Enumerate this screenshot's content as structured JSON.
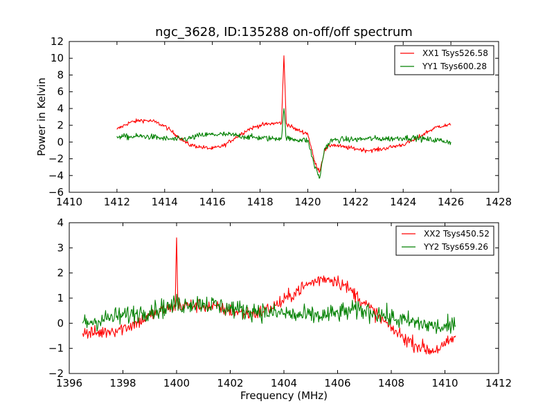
{
  "chart_data": [
    {
      "type": "line",
      "title": "ngc_3628, ID:135288 on-off/off spectrum",
      "xlabel": "",
      "ylabel": "Power in Kelvin",
      "xlim": [
        1410,
        1428
      ],
      "ylim": [
        -6,
        12
      ],
      "xticks": [
        1410,
        1412,
        1414,
        1416,
        1418,
        1420,
        1422,
        1424,
        1426,
        1428
      ],
      "yticks": [
        -6,
        -4,
        -2,
        0,
        2,
        4,
        6,
        8,
        10,
        12
      ],
      "grid": false,
      "legend_position": "top-right",
      "series": [
        {
          "name": "XX1 Tsys526.58",
          "color": "#ff0000",
          "x": [
            1412.0,
            1412.5,
            1413.0,
            1413.5,
            1414.0,
            1414.5,
            1415.0,
            1415.5,
            1416.0,
            1416.5,
            1417.0,
            1417.5,
            1418.0,
            1418.5,
            1418.9,
            1419.0,
            1419.1,
            1419.5,
            1420.0,
            1420.3,
            1420.5,
            1420.7,
            1421.0,
            1421.5,
            1422.0,
            1422.5,
            1423.0,
            1423.5,
            1424.0,
            1424.5,
            1425.0,
            1425.5,
            1426.0
          ],
          "y": [
            1.5,
            2.3,
            2.6,
            2.5,
            1.9,
            0.8,
            -0.3,
            -0.6,
            -0.8,
            -0.4,
            0.6,
            1.5,
            2.0,
            2.2,
            2.3,
            10.3,
            2.2,
            1.5,
            1.0,
            -2.5,
            -3.5,
            -1.0,
            -0.3,
            -0.6,
            -0.8,
            -1.0,
            -0.9,
            -0.6,
            -0.3,
            0.3,
            1.2,
            1.9,
            2.0
          ]
        },
        {
          "name": "YY1 Tsys600.28",
          "color": "#008000",
          "x": [
            1412.0,
            1412.5,
            1413.0,
            1413.5,
            1414.0,
            1414.5,
            1415.0,
            1415.5,
            1416.0,
            1416.5,
            1417.0,
            1417.5,
            1418.0,
            1418.5,
            1418.9,
            1419.0,
            1419.1,
            1419.5,
            1420.0,
            1420.3,
            1420.5,
            1420.7,
            1421.0,
            1421.5,
            1422.0,
            1422.5,
            1423.0,
            1423.5,
            1424.0,
            1424.5,
            1425.0,
            1425.5,
            1426.0
          ],
          "y": [
            0.7,
            0.6,
            0.7,
            0.6,
            0.4,
            0.3,
            0.4,
            0.8,
            0.9,
            0.9,
            0.8,
            0.6,
            0.5,
            0.4,
            0.5,
            4.0,
            0.4,
            0.3,
            0.2,
            -3.0,
            -4.3,
            -0.8,
            0.2,
            0.3,
            0.3,
            0.4,
            0.4,
            0.4,
            0.5,
            0.5,
            0.3,
            0.2,
            0.0
          ]
        }
      ]
    },
    {
      "type": "line",
      "title": "",
      "xlabel": "Frequency (MHz)",
      "ylabel": "",
      "xlim": [
        1396,
        1412
      ],
      "ylim": [
        -2,
        4
      ],
      "xticks": [
        1396,
        1398,
        1400,
        1402,
        1404,
        1406,
        1408,
        1410,
        1412
      ],
      "yticks": [
        -2,
        -1,
        0,
        1,
        2,
        3,
        4
      ],
      "grid": false,
      "legend_position": "top-right",
      "series": [
        {
          "name": "XX2 Tsys450.52",
          "color": "#ff0000",
          "x": [
            1396.5,
            1397.0,
            1397.5,
            1398.0,
            1398.5,
            1399.0,
            1399.5,
            1399.95,
            1400.0,
            1400.05,
            1400.5,
            1401.0,
            1401.5,
            1402.0,
            1402.5,
            1403.0,
            1403.5,
            1404.0,
            1404.5,
            1405.0,
            1405.5,
            1406.0,
            1406.5,
            1407.0,
            1407.5,
            1408.0,
            1408.5,
            1409.0,
            1409.5,
            1410.0,
            1410.4
          ],
          "y": [
            -0.4,
            -0.4,
            -0.3,
            -0.2,
            0.0,
            0.3,
            0.5,
            0.7,
            3.4,
            0.7,
            0.7,
            0.7,
            0.6,
            0.5,
            0.4,
            0.4,
            0.6,
            0.9,
            1.3,
            1.6,
            1.8,
            1.7,
            1.3,
            0.8,
            0.3,
            -0.2,
            -0.6,
            -0.9,
            -1.1,
            -0.9,
            -0.5
          ]
        },
        {
          "name": "YY2 Tsys659.26",
          "color": "#008000",
          "x": [
            1396.5,
            1397.0,
            1397.5,
            1398.0,
            1398.5,
            1399.0,
            1399.5,
            1399.95,
            1400.0,
            1400.05,
            1400.5,
            1401.0,
            1401.5,
            1402.0,
            1402.5,
            1403.0,
            1403.5,
            1404.0,
            1404.5,
            1405.0,
            1405.5,
            1406.0,
            1406.5,
            1407.0,
            1407.5,
            1408.0,
            1408.5,
            1409.0,
            1409.5,
            1410.0,
            1410.4
          ],
          "y": [
            0.0,
            0.1,
            0.2,
            0.3,
            0.4,
            0.5,
            0.6,
            0.7,
            1.0,
            0.7,
            0.8,
            0.8,
            0.7,
            0.6,
            0.5,
            0.5,
            0.4,
            0.4,
            0.3,
            0.3,
            0.3,
            0.4,
            0.5,
            0.5,
            0.4,
            0.2,
            0.1,
            0.0,
            -0.1,
            -0.2,
            -0.1
          ]
        }
      ]
    }
  ]
}
